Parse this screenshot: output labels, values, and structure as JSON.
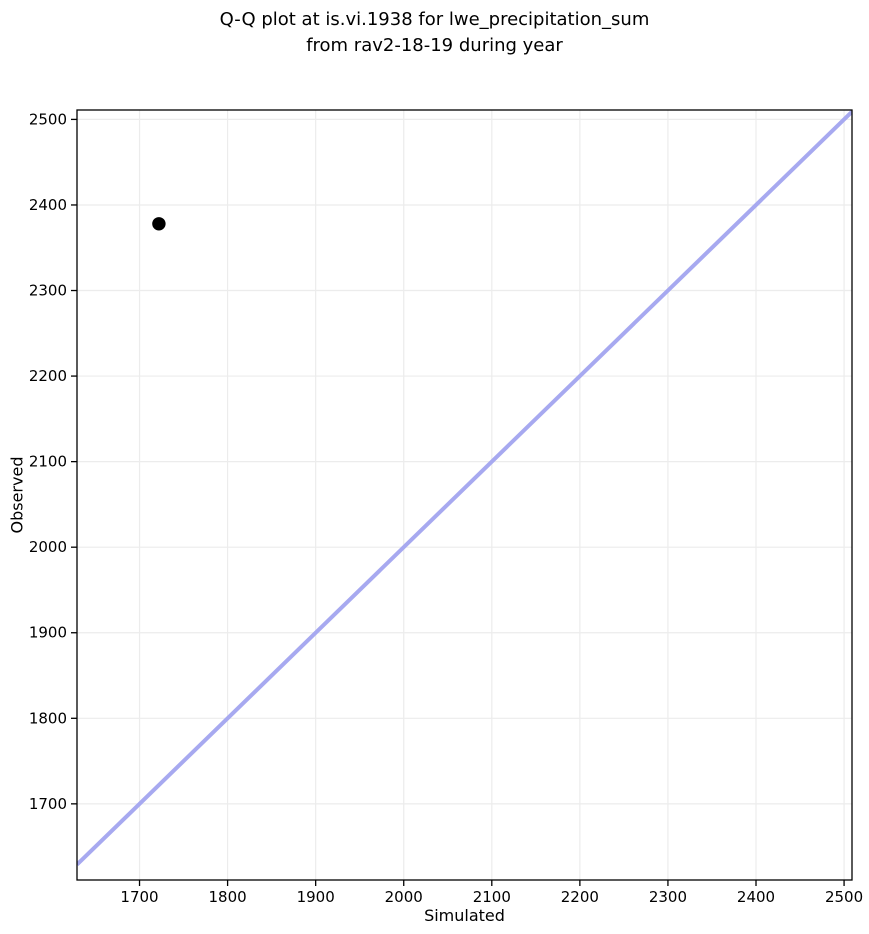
{
  "figure": {
    "title_line1": "Q-Q plot at is.vi.1938 for lwe_precipitation_sum",
    "title_line2": "from rav2-18-19 during year"
  },
  "chart_data": {
    "type": "scatter",
    "title": "Q-Q plot at is.vi.1938 for lwe_precipitation_sum\nfrom rav2-18-19 during year",
    "xlabel": "Simulated",
    "ylabel": "Observed",
    "xlim": [
      1629,
      2509
    ],
    "ylim": [
      1611,
      2511
    ],
    "xticks": [
      1700,
      1800,
      1900,
      2000,
      2100,
      2200,
      2300,
      2400,
      2500
    ],
    "yticks": [
      1700,
      1800,
      1900,
      2000,
      2100,
      2200,
      2300,
      2400,
      2500
    ],
    "grid": true,
    "legend": false,
    "points": [
      {
        "x": 1722,
        "y": 2378
      }
    ],
    "reference_line": {
      "type": "identity",
      "equation": "y = x"
    },
    "colors": {
      "point": "#000000",
      "reference_line": "#a7a9f0",
      "grid": "#ececec",
      "spine": "#000000",
      "text": "#000000",
      "background": "#ffffff"
    }
  }
}
